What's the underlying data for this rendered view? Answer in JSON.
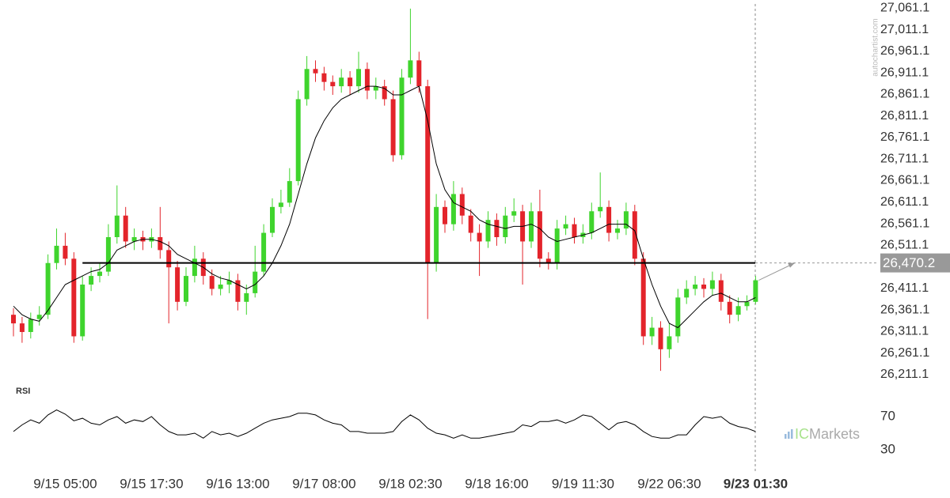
{
  "chart_data": {
    "type": "candlestick",
    "up_color": "#3fd42d",
    "down_color": "#e3242b",
    "open": [
      26350,
      26330,
      26310,
      26340,
      26350,
      26470,
      26510,
      26480,
      26300,
      26420,
      26440,
      26450,
      26530,
      26580,
      26520,
      26530,
      26520,
      26530,
      26500,
      26460,
      26380,
      26440,
      26480,
      26440,
      26410,
      26420,
      26430,
      26380,
      26400,
      26450,
      26540,
      26600,
      26610,
      26660,
      26850,
      26920,
      26910,
      26890,
      26880,
      26900,
      26880,
      26920,
      26870,
      26880,
      26850,
      26720,
      26900,
      26940,
      26880,
      26470,
      26600,
      26560,
      26630,
      26580,
      26540,
      26520,
      26570,
      26530,
      26580,
      26590,
      26520,
      26590,
      26480,
      26470,
      26550,
      26560,
      26530,
      26540,
      26590,
      26600,
      26540,
      26550,
      26590,
      26480,
      26300,
      26320,
      26270,
      26300,
      26390,
      26410,
      26420,
      26410,
      26430,
      26380,
      26350,
      26370,
      26380
    ],
    "high": [
      26365,
      26345,
      26355,
      26370,
      26490,
      26550,
      26540,
      26495,
      26440,
      26460,
      26470,
      26560,
      26650,
      26600,
      26550,
      26545,
      26550,
      26600,
      26520,
      26475,
      26460,
      26510,
      26495,
      26455,
      26440,
      26450,
      26445,
      26420,
      26510,
      26560,
      26620,
      26640,
      26690,
      26870,
      26950,
      26940,
      26925,
      26905,
      26920,
      26915,
      26960,
      26935,
      26900,
      26895,
      26870,
      26920,
      27060,
      26960,
      26895,
      26630,
      26615,
      26660,
      26645,
      26595,
      26560,
      26590,
      26585,
      26600,
      26620,
      26605,
      26610,
      26640,
      26495,
      26570,
      26580,
      26575,
      26560,
      26610,
      26680,
      26615,
      26570,
      26610,
      26605,
      26495,
      26345,
      26335,
      26330,
      26410,
      26430,
      26440,
      26435,
      26450,
      26445,
      26395,
      26390,
      26395,
      26440
    ],
    "low": [
      26300,
      26285,
      26295,
      26325,
      26340,
      26455,
      26465,
      26285,
      26290,
      26405,
      26425,
      26440,
      26515,
      26505,
      26500,
      26500,
      26505,
      26480,
      26330,
      26360,
      26370,
      26425,
      26420,
      26395,
      26395,
      26400,
      26360,
      26350,
      26390,
      26440,
      26530,
      26585,
      26600,
      26650,
      26835,
      26890,
      26870,
      26860,
      26865,
      26860,
      26865,
      26850,
      26850,
      26835,
      26705,
      26710,
      26885,
      26865,
      26340,
      26450,
      26540,
      26545,
      26560,
      26520,
      26440,
      26505,
      26510,
      26515,
      26565,
      26420,
      26505,
      26460,
      26455,
      26455,
      26535,
      26515,
      26515,
      26525,
      26575,
      26520,
      26525,
      26535,
      26465,
      26280,
      26280,
      26220,
      26250,
      26285,
      26375,
      26395,
      26390,
      26395,
      26360,
      26330,
      26335,
      26360,
      26375
    ],
    "close": [
      26330,
      26310,
      26340,
      26350,
      26470,
      26510,
      26480,
      26300,
      26420,
      26440,
      26450,
      26530,
      26580,
      26520,
      26530,
      26520,
      26530,
      26500,
      26460,
      26380,
      26440,
      26480,
      26440,
      26410,
      26420,
      26430,
      26380,
      26400,
      26450,
      26540,
      26600,
      26610,
      26660,
      26850,
      26920,
      26910,
      26890,
      26880,
      26900,
      26880,
      26920,
      26870,
      26880,
      26850,
      26720,
      26900,
      26940,
      26880,
      26470,
      26600,
      26560,
      26630,
      26580,
      26540,
      26520,
      26570,
      26530,
      26580,
      26590,
      26520,
      26590,
      26480,
      26470,
      26550,
      26560,
      26530,
      26540,
      26590,
      26600,
      26540,
      26550,
      26590,
      26480,
      26300,
      26320,
      26270,
      26300,
      26390,
      26410,
      26420,
      26410,
      26430,
      26380,
      26350,
      26370,
      26380,
      26430
    ],
    "moving_average": {
      "color": "#000000",
      "values": [
        26370,
        26350,
        26340,
        26335,
        26360,
        26390,
        26420,
        26430,
        26440,
        26450,
        26455,
        26470,
        26500,
        26510,
        26520,
        26525,
        26525,
        26520,
        26510,
        26490,
        26480,
        26470,
        26460,
        26445,
        26435,
        26430,
        26420,
        26410,
        26420,
        26440,
        26470,
        26510,
        26560,
        26630,
        26700,
        26760,
        26800,
        26830,
        26850,
        26860,
        26870,
        26880,
        26880,
        26875,
        26860,
        26860,
        26870,
        26880,
        26800,
        26700,
        26640,
        26610,
        26600,
        26590,
        26570,
        26560,
        26555,
        26550,
        26555,
        26555,
        26560,
        26550,
        26530,
        26520,
        26525,
        26530,
        26535,
        26540,
        26550,
        26560,
        26560,
        26560,
        26545,
        26480,
        26420,
        26370,
        26330,
        26320,
        26340,
        26360,
        26380,
        26395,
        26400,
        26390,
        26380,
        26380,
        26390
      ]
    },
    "xlim": [
      -1.5,
      87.5
    ],
    "xticks": [
      {
        "value": 6,
        "label": "9/15 05:00"
      },
      {
        "value": 16,
        "label": "9/15 17:30"
      },
      {
        "value": 26,
        "label": "9/16 13:00"
      },
      {
        "value": 36,
        "label": "9/17 08:00"
      },
      {
        "value": 46,
        "label": "9/18 02:30"
      },
      {
        "value": 56,
        "label": "9/18 16:00"
      },
      {
        "value": 66,
        "label": "9/19 11:30"
      },
      {
        "value": 76,
        "label": "9/22 06:30"
      },
      {
        "value": 86,
        "label": "9/23 01:30"
      }
    ],
    "ylim": [
      26200,
      27080
    ],
    "yticks": [
      {
        "value": 27061.1,
        "label": "27,061.1"
      },
      {
        "value": 27011.1,
        "label": "27,011.1"
      },
      {
        "value": 26961.1,
        "label": "26,961.1"
      },
      {
        "value": 26911.1,
        "label": "26,911.1"
      },
      {
        "value": 26861.1,
        "label": "26,861.1"
      },
      {
        "value": 26811.1,
        "label": "26,811.1"
      },
      {
        "value": 26761.1,
        "label": "26,761.1"
      },
      {
        "value": 26711.1,
        "label": "26,711.1"
      },
      {
        "value": 26661.1,
        "label": "26,661.1"
      },
      {
        "value": 26611.1,
        "label": "26,611.1"
      },
      {
        "value": 26561.1,
        "label": "26,561.1"
      },
      {
        "value": 26511.1,
        "label": "26,511.1"
      },
      {
        "value": 26461.1,
        "label": "26,461.1"
      },
      {
        "value": 26411.1,
        "label": "26,411.1"
      },
      {
        "value": 26361.1,
        "label": "26,361.1"
      },
      {
        "value": 26311.1,
        "label": "26,311.1"
      },
      {
        "value": 26261.1,
        "label": "26,261.1"
      },
      {
        "value": 26211.1,
        "label": "26,211.1"
      }
    ],
    "level": {
      "value": 26470.2,
      "label": "26,470.2",
      "start": 8,
      "color": "#000000"
    },
    "indicator": {
      "name": "RSI",
      "color": "#000000",
      "ylim": [
        10,
        90
      ],
      "yticks": [
        70,
        30
      ],
      "values": [
        52,
        60,
        66,
        62,
        72,
        78,
        73,
        65,
        68,
        62,
        60,
        66,
        70,
        62,
        66,
        64,
        70,
        60,
        52,
        48,
        48,
        50,
        44,
        52,
        48,
        50,
        46,
        50,
        56,
        62,
        66,
        68,
        70,
        74,
        74,
        72,
        66,
        62,
        60,
        52,
        52,
        50,
        50,
        50,
        52,
        64,
        72,
        66,
        56,
        50,
        48,
        44,
        48,
        44,
        44,
        46,
        48,
        50,
        52,
        60,
        58,
        64,
        64,
        66,
        62,
        66,
        72,
        70,
        62,
        54,
        62,
        64,
        60,
        52,
        46,
        44,
        44,
        48,
        48,
        60,
        70,
        68,
        70,
        62,
        58,
        56,
        52
      ]
    },
    "watermark": "autochartist.com",
    "logo": {
      "prefix": "IC",
      "suffix": "Markets"
    }
  }
}
